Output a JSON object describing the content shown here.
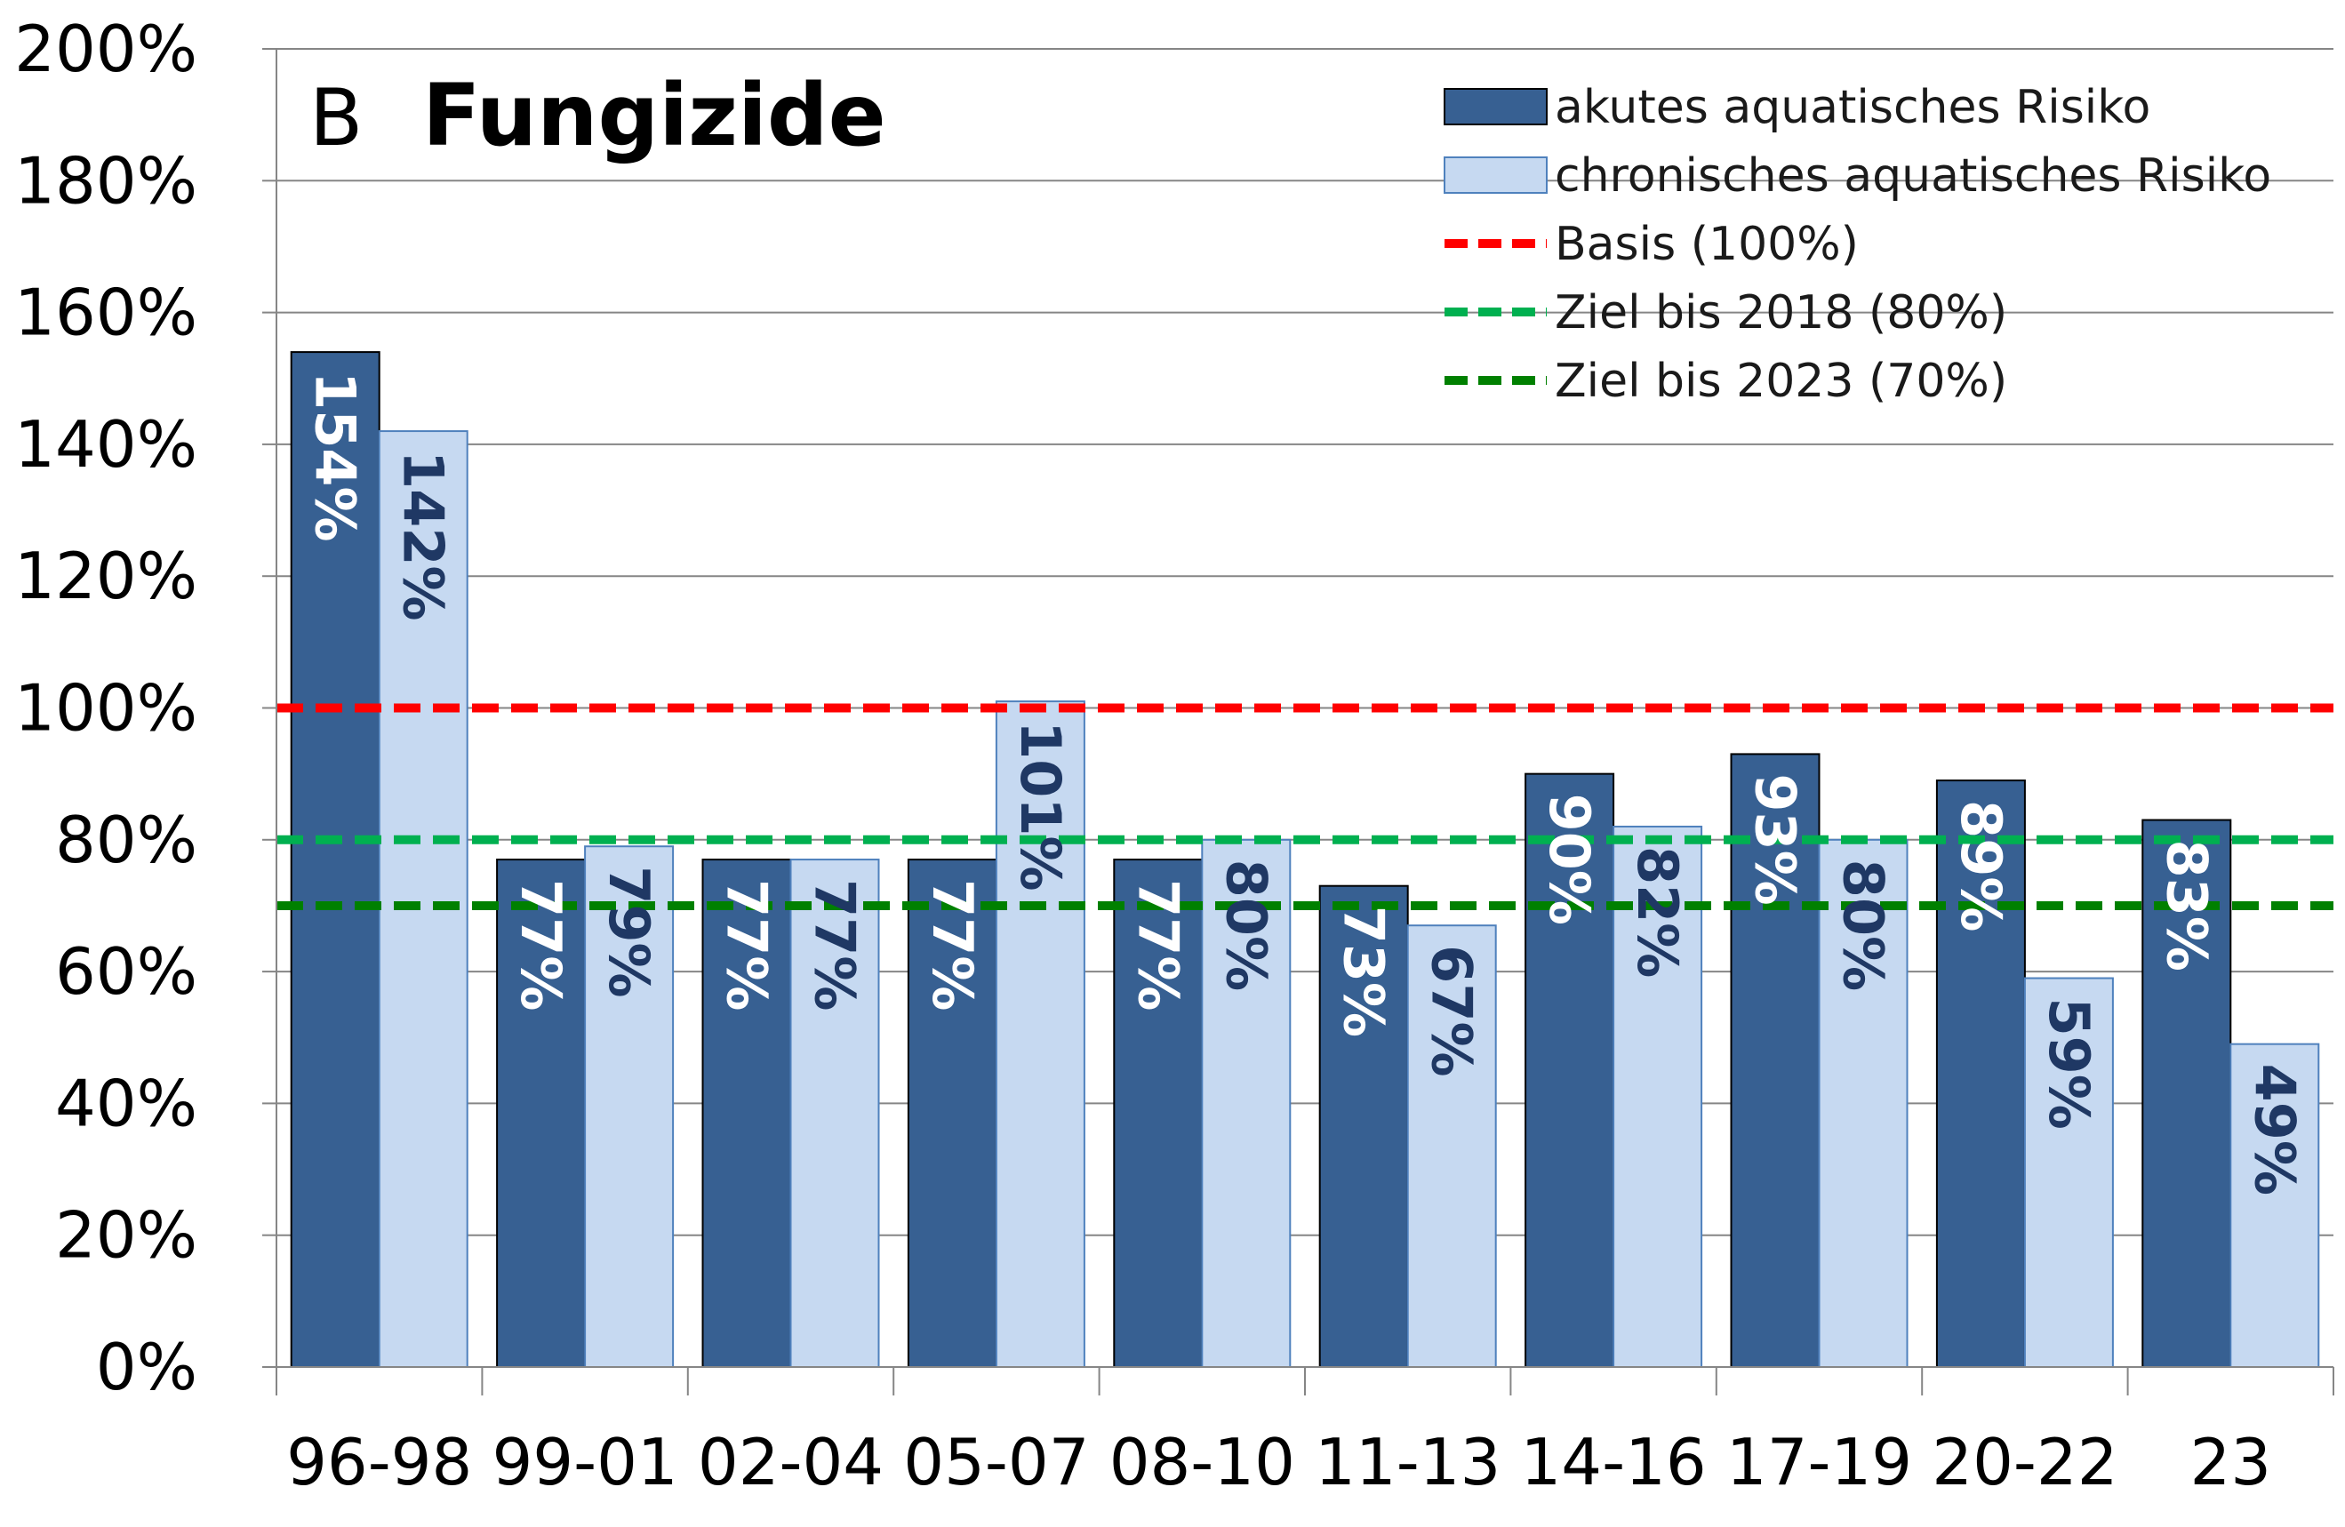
{
  "chart_data": {
    "type": "bar",
    "panel_letter": "B",
    "title": "Fungizide",
    "categories": [
      "96-98",
      "99-01",
      "02-04",
      "05-07",
      "08-10",
      "11-13",
      "14-16",
      "17-19",
      "20-22",
      "23"
    ],
    "series": [
      {
        "name": "akutes aquatisches Risiko",
        "color": "#376092",
        "label_color": "#ffffff",
        "values": [
          154,
          77,
          77,
          77,
          77,
          73,
          90,
          93,
          89,
          83
        ],
        "labels": [
          "154%",
          "77%",
          "77%",
          "77%",
          "77%",
          "73%",
          "90%",
          "93%",
          "89%",
          "83%"
        ]
      },
      {
        "name": "chronisches aquatisches Risiko",
        "color": "#c6d9f1",
        "border_color": "#4f81bd",
        "label_color": "#1f3864",
        "values": [
          142,
          79,
          77,
          101,
          80,
          67,
          82,
          80,
          59,
          49
        ],
        "labels": [
          "142%",
          "79%",
          "77%",
          "101%",
          "80%",
          "67%",
          "82%",
          "80%",
          "59%",
          "49%"
        ]
      }
    ],
    "reference_lines": [
      {
        "name": "Basis (100%)",
        "value": 100,
        "color": "#ff0000"
      },
      {
        "name": "Ziel bis 2018 (80%)",
        "value": 80,
        "color": "#00b050"
      },
      {
        "name": "Ziel bis 2023 (70%)",
        "value": 70,
        "color": "#008000"
      }
    ],
    "ylim": [
      0,
      200
    ],
    "yticks": [
      0,
      20,
      40,
      60,
      80,
      100,
      120,
      140,
      160,
      180,
      200
    ],
    "ytick_labels": [
      "0%",
      "20%",
      "40%",
      "60%",
      "80%",
      "100%",
      "120%",
      "140%",
      "160%",
      "180%",
      "200%"
    ],
    "xlabel": "",
    "ylabel": "",
    "grid": "horizontal",
    "legend_position": "top-right"
  }
}
